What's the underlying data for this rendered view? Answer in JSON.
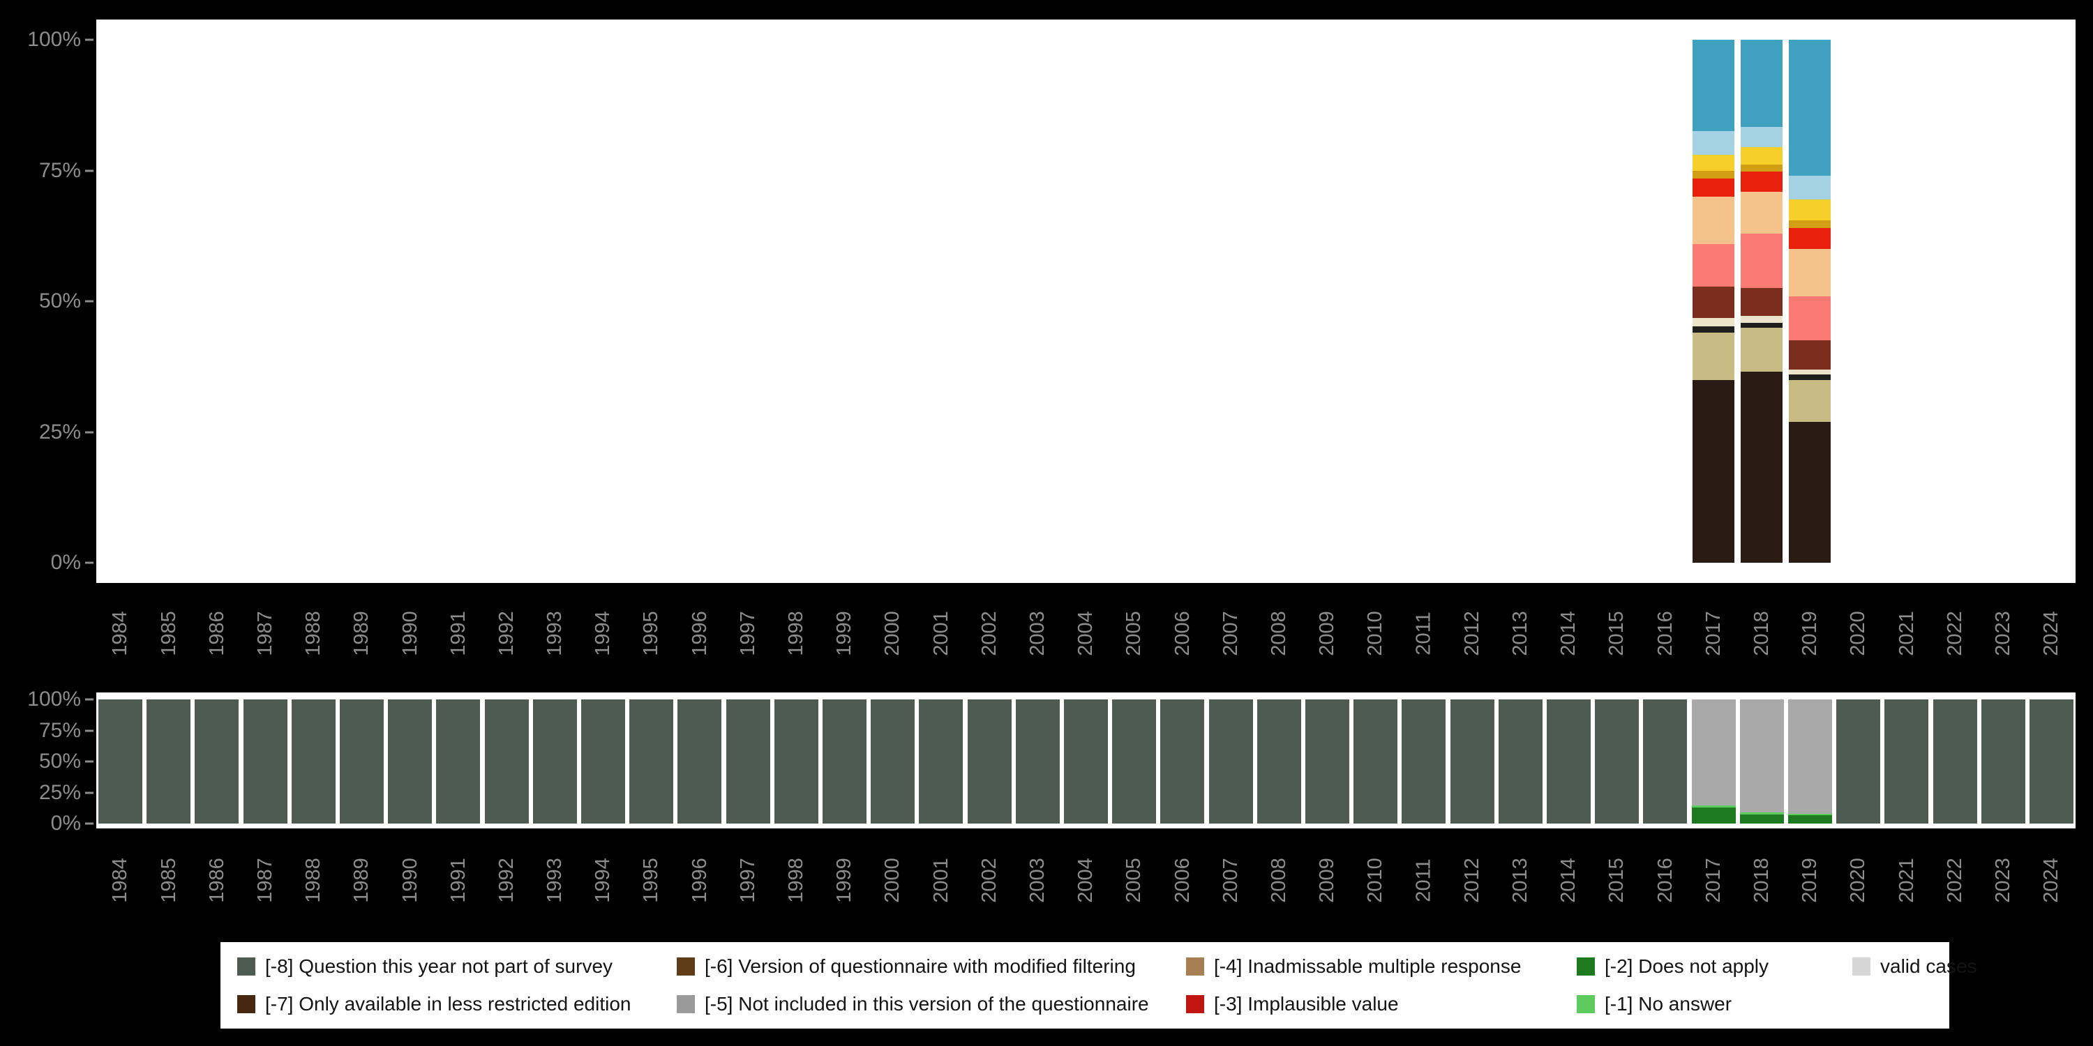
{
  "page": {
    "background": "#000000",
    "panel_background": "#ffffff",
    "axis_text_color": "#8d8d8d"
  },
  "years": [
    "1984",
    "1985",
    "1986",
    "1987",
    "1988",
    "1989",
    "1990",
    "1991",
    "1992",
    "1993",
    "1994",
    "1995",
    "1996",
    "1997",
    "1998",
    "1999",
    "2000",
    "2001",
    "2002",
    "2003",
    "2004",
    "2005",
    "2006",
    "2007",
    "2008",
    "2009",
    "2010",
    "2011",
    "2012",
    "2013",
    "2014",
    "2015",
    "2016",
    "2017",
    "2018",
    "2019",
    "2020",
    "2021",
    "2022",
    "2023",
    "2024"
  ],
  "chart_data": [
    {
      "id": "value-distribution",
      "type": "bar",
      "subtype": "stacked-percent",
      "title": "",
      "xlabel": "",
      "ylabel": "",
      "ylim": [
        0,
        100
      ],
      "grid": false,
      "yticks": [
        {
          "label": "100%",
          "value": 100
        },
        {
          "label": "75%",
          "value": 75
        },
        {
          "label": "50%",
          "value": 50
        },
        {
          "label": "25%",
          "value": 25
        },
        {
          "label": "0%",
          "value": 0
        }
      ],
      "note": "stacked distribution of answer categories, only years 2017-2019 have data; segments listed bottom-to-top in percent",
      "bars": {
        "2017": [
          {
            "color": "#2a1c14",
            "value": 35
          },
          {
            "color": "#c8bb84",
            "value": 9
          },
          {
            "color": "#1f1f1d",
            "value": 1.2
          },
          {
            "color": "#ebe3ca",
            "value": 1.6
          },
          {
            "color": "#7c2e1e",
            "value": 6
          },
          {
            "color": "#fb7a74",
            "value": 8.2
          },
          {
            "color": "#f6c28b",
            "value": 9
          },
          {
            "color": "#e8200c",
            "value": 3.5
          },
          {
            "color": "#d29f14",
            "value": 1.5
          },
          {
            "color": "#f7cf2b",
            "value": 3
          },
          {
            "color": "#a5d2e3",
            "value": 4.5
          },
          {
            "color": "#3fa0c0",
            "value": 17.5
          }
        ],
        "2018": [
          {
            "color": "#2a1c14",
            "value": 36.5
          },
          {
            "color": "#c8bb84",
            "value": 8.4
          },
          {
            "color": "#1f1f1d",
            "value": 1
          },
          {
            "color": "#ebe3ca",
            "value": 1.3
          },
          {
            "color": "#7c2e1e",
            "value": 5.3
          },
          {
            "color": "#fb7a74",
            "value": 10.5
          },
          {
            "color": "#f6c28b",
            "value": 8
          },
          {
            "color": "#e8200c",
            "value": 3.8
          },
          {
            "color": "#d29f14",
            "value": 1.4
          },
          {
            "color": "#f7cf2b",
            "value": 3.3
          },
          {
            "color": "#a5d2e3",
            "value": 3.8
          },
          {
            "color": "#3fa0c0",
            "value": 16.7
          }
        ],
        "2019": [
          {
            "color": "#2a1c14",
            "value": 27
          },
          {
            "color": "#c8bb84",
            "value": 8
          },
          {
            "color": "#1f1f1d",
            "value": 1
          },
          {
            "color": "#ebe3ca",
            "value": 1
          },
          {
            "color": "#7c2e1e",
            "value": 5.5
          },
          {
            "color": "#fb7a74",
            "value": 8.5
          },
          {
            "color": "#f6c28b",
            "value": 9
          },
          {
            "color": "#e8200c",
            "value": 4
          },
          {
            "color": "#d29f14",
            "value": 1.5
          },
          {
            "color": "#f7cf2b",
            "value": 4
          },
          {
            "color": "#a5d2e3",
            "value": 4.5
          },
          {
            "color": "#3fa0c0",
            "value": 26
          }
        ]
      }
    },
    {
      "id": "missing-codes",
      "type": "bar",
      "subtype": "stacked-percent",
      "title": "",
      "xlabel": "",
      "ylabel": "",
      "ylim": [
        0,
        100
      ],
      "grid": false,
      "yticks": [
        {
          "label": "100%",
          "value": 100
        },
        {
          "label": "75%",
          "value": 75
        },
        {
          "label": "50%",
          "value": 50
        },
        {
          "label": "25%",
          "value": 25
        },
        {
          "label": "0%",
          "value": 0
        }
      ],
      "default_segments": [
        {
          "label": "-8",
          "color": "#4e5b53",
          "value": 100
        }
      ],
      "bars": {
        "2017": [
          {
            "label": "-2",
            "color": "#1e7a1e",
            "value": 13
          },
          {
            "label": "-1",
            "color": "#5ecb5e",
            "value": 1.5
          },
          {
            "label": "valid",
            "color": "#a9a9a9",
            "value": 85.5
          }
        ],
        "2018": [
          {
            "label": "-2",
            "color": "#1e7a1e",
            "value": 7.5
          },
          {
            "label": "-1",
            "color": "#5ecb5e",
            "value": 1.5
          },
          {
            "label": "valid",
            "color": "#a9a9a9",
            "value": 91
          }
        ],
        "2019": [
          {
            "label": "-2",
            "color": "#1e7a1e",
            "value": 6.5
          },
          {
            "label": "-1",
            "color": "#5ecb5e",
            "value": 1.5
          },
          {
            "label": "valid",
            "color": "#a9a9a9",
            "value": 92
          }
        ]
      }
    }
  ],
  "legend": {
    "position": "bottom",
    "items": [
      {
        "code": "-8",
        "label": "[-8] Question this year not part of survey",
        "color": "#4e5b53"
      },
      {
        "code": "-7",
        "label": "[-7] Only available in less restricted edition",
        "color": "#45280f"
      },
      {
        "code": "-6",
        "label": "[-6] Version of questionnaire with modified filtering",
        "color": "#5e3c17"
      },
      {
        "code": "-5",
        "label": "[-5] Not included in this version of the questionnaire",
        "color": "#9a9a9a"
      },
      {
        "code": "-4",
        "label": "[-4] Inadmissable multiple response",
        "color": "#a87e53"
      },
      {
        "code": "-3",
        "label": "[-3] Implausible value",
        "color": "#c01510"
      },
      {
        "code": "-2",
        "label": "[-2] Does not apply",
        "color": "#1e7a1e"
      },
      {
        "code": "-1",
        "label": "[-1] No answer",
        "color": "#5ecb5e"
      },
      {
        "code": "valid",
        "label": "valid cases",
        "color": "#d6d6d6"
      }
    ]
  }
}
